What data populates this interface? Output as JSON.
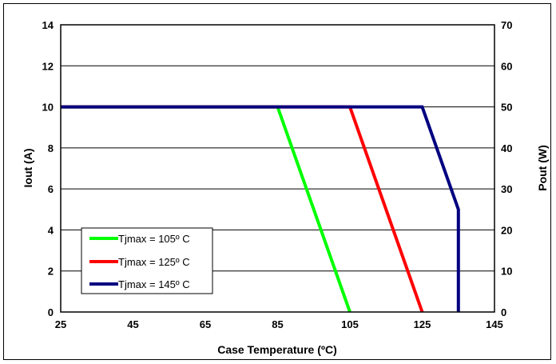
{
  "chart_data": {
    "type": "line",
    "title": "",
    "xlabel": "Case Temperature (ºC)",
    "ylabel_left": "Iout (A)",
    "ylabel_right": "Pout (W)",
    "xlim": [
      25,
      145
    ],
    "ylim_left": [
      0,
      14
    ],
    "ylim_right": [
      0,
      70
    ],
    "x_ticks": [
      "25",
      "45",
      "65",
      "85",
      "105",
      "125",
      "145"
    ],
    "y_ticks_left": [
      "0",
      "2",
      "4",
      "6",
      "8",
      "10",
      "12",
      "14"
    ],
    "y_ticks_right": [
      "0",
      "10",
      "20",
      "30",
      "40",
      "50",
      "60",
      "70"
    ],
    "grid": "horizontal",
    "legend_position": "bottom-left",
    "series": [
      {
        "name": "Tjmax = 105º C",
        "color": "#00ff00",
        "x": [
          25,
          85,
          105
        ],
        "y": [
          10,
          10,
          0
        ]
      },
      {
        "name": "Tjmax = 125º C",
        "color": "#ff0000",
        "x": [
          25,
          105,
          125
        ],
        "y": [
          10,
          10,
          0
        ]
      },
      {
        "name": "Tjmax = 145º C",
        "color": "#000080",
        "x": [
          25,
          125,
          135,
          135
        ],
        "y": [
          10,
          10,
          5,
          0
        ]
      }
    ]
  }
}
